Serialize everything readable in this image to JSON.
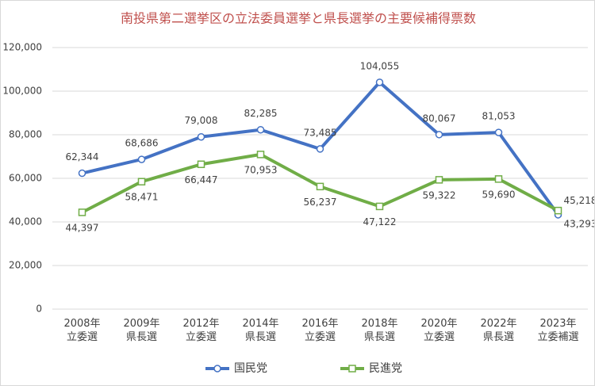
{
  "chart_data": {
    "type": "line",
    "title": "南投県第二選挙区の立法委員選挙と県長選挙の主要候補得票数",
    "categories": [
      "2008年\n立委選",
      "2009年\n県長選",
      "2012年\n立委選",
      "2014年\n県長選",
      "2016年\n立委選",
      "2018年\n県長選",
      "2020年\n立委選",
      "2022年\n県長選",
      "2023年\n立委補選"
    ],
    "series": [
      {
        "name": "国民党",
        "color": "#4472c4",
        "marker": "circle",
        "values": [
          62344,
          68686,
          79008,
          82285,
          73485,
          104055,
          80067,
          81053,
          43293
        ],
        "value_labels": [
          "62,344",
          "68,686",
          "79,008",
          "82,285",
          "73,485",
          "104,055",
          "80,067",
          "81,053",
          "43,293"
        ]
      },
      {
        "name": "民進党",
        "color": "#70ad47",
        "marker": "square",
        "values": [
          44397,
          58471,
          66447,
          70953,
          56237,
          47122,
          59322,
          59690,
          45218
        ],
        "value_labels": [
          "44,397",
          "58,471",
          "66,447",
          "70,953",
          "56,237",
          "47,122",
          "59,322",
          "59,690",
          "45,218"
        ]
      }
    ],
    "ylim": [
      0,
      120000
    ],
    "yticks": [
      {
        "value": 0,
        "label": "0"
      },
      {
        "value": 20000,
        "label": "20,000"
      },
      {
        "value": 40000,
        "label": "40,000"
      },
      {
        "value": 60000,
        "label": "60,000"
      },
      {
        "value": 80000,
        "label": "80,000"
      },
      {
        "value": 100000,
        "label": "100,000"
      },
      {
        "value": 120000,
        "label": "120,000"
      }
    ],
    "grid": true,
    "legend": "bottom"
  }
}
